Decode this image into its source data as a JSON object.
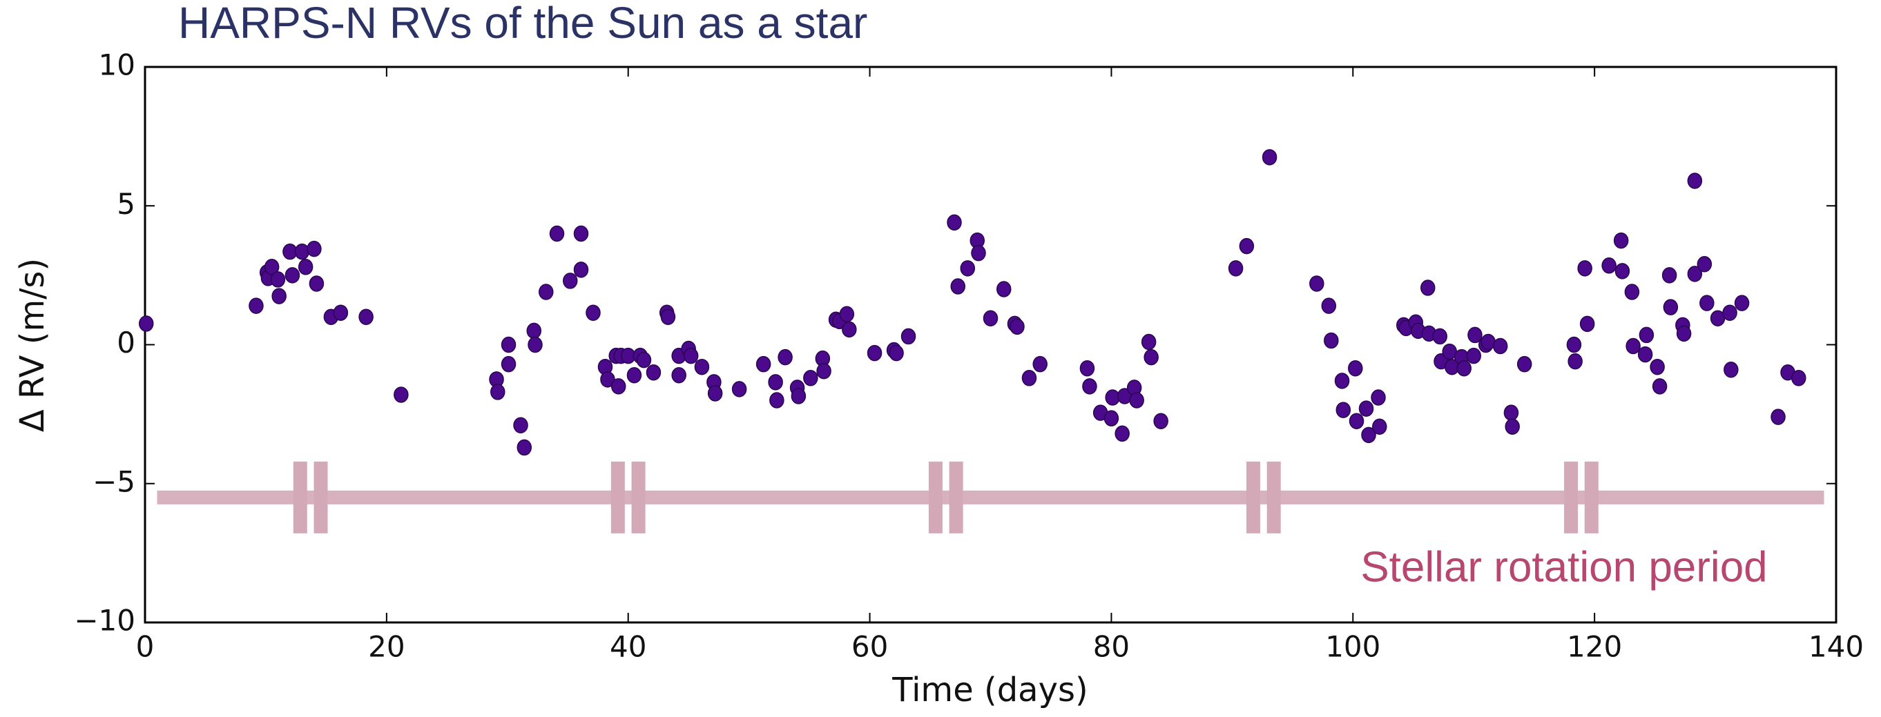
{
  "chart_data": {
    "type": "scatter",
    "title": "HARPS-N RVs of the Sun as a star",
    "x_label": "Time (days)",
    "y_label": "Δ RV (m/s)",
    "annotation": "Stellar rotation period",
    "color": "#4b0a8c",
    "xlim": [
      0,
      140
    ],
    "ylim": [
      -10,
      10
    ],
    "xticks": [
      0,
      20,
      40,
      60,
      80,
      100,
      120,
      140
    ],
    "yticks": [
      {
        "value": -10,
        "label": "−10"
      },
      {
        "value": -5,
        "label": "−5"
      },
      0,
      5,
      10
    ],
    "grid": false,
    "rotation_band": {
      "color": "#d4a9b7",
      "level": -5.5,
      "x_range": [
        1,
        139
      ],
      "spikes": [
        13.7,
        40.0,
        66.3,
        92.6,
        118.9
      ]
    },
    "x": [
      0.1,
      9.2,
      10.1,
      10.2,
      10.5,
      11.0,
      11.1,
      12.0,
      12.2,
      13.0,
      13.3,
      14.0,
      14.2,
      15.4,
      16.2,
      18.3,
      21.2,
      29.1,
      29.2,
      30.1,
      30.1,
      31.1,
      31.4,
      32.2,
      32.3,
      33.2,
      34.1,
      35.2,
      36.1,
      36.1,
      37.1,
      38.1,
      38.3,
      39.0,
      39.2,
      39.4,
      40.0,
      40.5,
      41.0,
      41.3,
      42.1,
      43.2,
      43.3,
      44.2,
      44.2,
      45.0,
      45.2,
      46.1,
      47.1,
      47.2,
      49.2,
      51.2,
      52.2,
      52.3,
      53.0,
      54.0,
      54.1,
      55.1,
      56.1,
      56.2,
      57.2,
      57.5,
      58.1,
      58.3,
      60.4,
      62.0,
      62.2,
      63.2,
      67.0,
      67.3,
      68.1,
      68.9,
      69.0,
      70.0,
      71.1,
      72.0,
      72.2,
      73.2,
      74.1,
      78.0,
      78.2,
      79.1,
      80.0,
      80.1,
      80.9,
      81.1,
      81.9,
      82.1,
      83.1,
      83.3,
      84.1,
      90.3,
      91.2,
      93.1,
      97.0,
      98.0,
      98.2,
      99.1,
      99.2,
      100.2,
      100.3,
      101.1,
      101.3,
      102.1,
      102.2,
      104.2,
      104.4,
      105.2,
      105.4,
      106.2,
      106.3,
      107.2,
      107.3,
      108.0,
      108.2,
      109.0,
      109.2,
      110.0,
      110.1,
      111.0,
      111.2,
      112.2,
      113.1,
      113.2,
      114.2,
      118.3,
      118.4,
      119.2,
      119.4,
      121.2,
      122.2,
      122.3,
      123.1,
      123.2,
      124.2,
      124.3,
      125.2,
      125.4,
      126.2,
      126.3,
      127.3,
      127.4,
      128.3,
      128.3,
      129.1,
      129.3,
      130.2,
      131.2,
      131.3,
      132.2,
      135.2,
      136.0,
      136.9
    ],
    "values": [
      0.76,
      1.4,
      2.6,
      2.4,
      2.8,
      2.35,
      1.75,
      3.35,
      2.5,
      3.35,
      2.8,
      3.45,
      2.2,
      1.0,
      1.15,
      1.0,
      -1.8,
      -1.25,
      -1.7,
      0.0,
      -0.7,
      -2.9,
      -3.7,
      0.5,
      0.0,
      1.9,
      4.0,
      2.3,
      4.0,
      2.7,
      1.15,
      -0.8,
      -1.25,
      -0.4,
      -1.5,
      -0.4,
      -0.4,
      -1.1,
      -0.4,
      -0.55,
      -1.0,
      1.15,
      1.0,
      -1.1,
      -0.4,
      -0.15,
      -0.4,
      -0.8,
      -1.35,
      -1.75,
      -1.6,
      -0.7,
      -1.35,
      -2.0,
      -0.45,
      -1.55,
      -1.85,
      -1.2,
      -0.5,
      -0.95,
      0.9,
      0.85,
      1.1,
      0.55,
      -0.3,
      -0.2,
      -0.3,
      0.3,
      4.4,
      2.1,
      2.75,
      3.75,
      3.3,
      0.95,
      2.0,
      0.75,
      0.65,
      -1.2,
      -0.7,
      -0.85,
      -1.5,
      -2.45,
      -2.65,
      -1.9,
      -3.2,
      -1.85,
      -1.55,
      -2.0,
      0.1,
      -0.45,
      -2.75,
      2.75,
      3.55,
      6.75,
      2.2,
      1.4,
      0.15,
      -1.3,
      -2.35,
      -0.85,
      -2.75,
      -2.3,
      -3.25,
      -1.9,
      -2.95,
      0.7,
      0.6,
      0.8,
      0.5,
      2.05,
      0.4,
      0.3,
      -0.6,
      -0.25,
      -0.8,
      -0.45,
      -0.85,
      -0.4,
      0.35,
      0.0,
      0.1,
      -0.05,
      -2.45,
      -2.95,
      -0.7,
      0.0,
      -0.6,
      2.75,
      0.75,
      2.85,
      3.75,
      2.65,
      1.9,
      -0.05,
      -0.35,
      0.35,
      -0.8,
      -1.5,
      2.5,
      1.35,
      0.7,
      0.4,
      5.9,
      2.55,
      2.9,
      1.5,
      0.95,
      1.15,
      -0.9,
      1.5,
      -2.6,
      -1.0,
      -1.2
    ]
  }
}
